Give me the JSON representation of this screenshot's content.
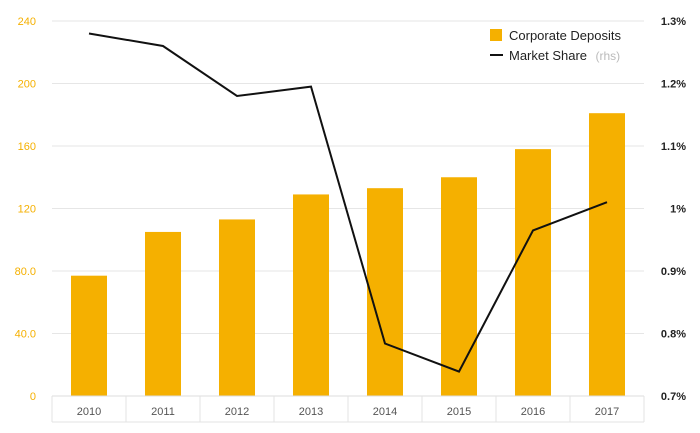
{
  "chart_data": {
    "type": "bar",
    "categories": [
      "2010",
      "2011",
      "2012",
      "2013",
      "2014",
      "2015",
      "2016",
      "2017"
    ],
    "series": [
      {
        "name": "Corporate Deposits",
        "type": "bar",
        "axis": "left",
        "color": "#f5b000",
        "values": [
          77,
          105,
          113,
          129,
          133,
          140,
          158,
          181
        ]
      },
      {
        "name": "Market Share",
        "name_suffix": "(rhs)",
        "type": "line",
        "axis": "right",
        "color": "#111111",
        "values": [
          1.28,
          1.26,
          1.18,
          1.195,
          0.784,
          0.739,
          0.965,
          1.01
        ]
      }
    ],
    "left_axis": {
      "ylim": [
        0,
        240
      ],
      "ticks": [
        0,
        40,
        80,
        120,
        160,
        200,
        240
      ],
      "tick_labels": [
        "0",
        "40.0",
        "80.0",
        "120",
        "160",
        "200",
        "240"
      ],
      "color": "#f5b000"
    },
    "right_axis": {
      "ylim": [
        0.7,
        1.3
      ],
      "ticks": [
        0.7,
        0.8,
        0.9,
        1.0,
        1.1,
        1.2,
        1.3
      ],
      "tick_labels": [
        "0.7%",
        "0.8%",
        "0.9%",
        "1%",
        "1.1%",
        "1.2%",
        "1.3%"
      ]
    },
    "title": "",
    "xlabel": "",
    "ylabel": "",
    "grid": true,
    "legend_position": "top-right"
  }
}
